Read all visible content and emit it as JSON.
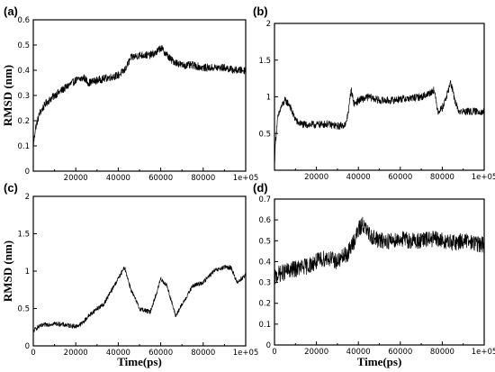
{
  "chart_data": [
    {
      "type": "line",
      "panel_label": "(a)",
      "xlabel": "",
      "ylabel": "RMSD (nm)",
      "xlim": [
        0,
        100000
      ],
      "ylim": [
        0,
        0.6
      ],
      "xticks": [
        20000,
        40000,
        60000,
        80000,
        100000
      ],
      "xtick_labels": [
        "20000",
        "40000",
        "60000",
        "80000",
        "1e+05"
      ],
      "yticks": [
        0,
        0.1,
        0.2,
        0.3,
        0.4,
        0.5,
        0.6
      ],
      "ytick_labels": [
        "0",
        "0.1",
        "0.2",
        "0.3",
        "0.4",
        "0.5",
        "0.6"
      ],
      "noise": 0.015,
      "series": [
        {
          "x": [
            0,
            1000,
            3000,
            6000,
            10000,
            15000,
            20000,
            24000,
            26000,
            30000,
            35000,
            40000,
            43000,
            46000,
            50000,
            55000,
            58000,
            60000,
            62000,
            65000,
            70000,
            75000,
            80000,
            85000,
            90000,
            95000,
            100000
          ],
          "y": [
            0.1,
            0.17,
            0.23,
            0.27,
            0.3,
            0.33,
            0.36,
            0.37,
            0.35,
            0.36,
            0.37,
            0.38,
            0.4,
            0.45,
            0.46,
            0.46,
            0.47,
            0.49,
            0.47,
            0.44,
            0.42,
            0.42,
            0.41,
            0.41,
            0.41,
            0.4,
            0.4
          ]
        }
      ]
    },
    {
      "type": "line",
      "panel_label": "(b)",
      "xlabel": "",
      "ylabel": "",
      "xlim": [
        0,
        100000
      ],
      "ylim": [
        0,
        2
      ],
      "xticks": [
        20000,
        40000,
        60000,
        80000,
        100000
      ],
      "xtick_labels": [
        "20000",
        "40000",
        "60000",
        "80000",
        "1e+05"
      ],
      "yticks": [
        0.5,
        1,
        1.5,
        2
      ],
      "ytick_labels": [
        "0.5",
        "1",
        "1.5",
        "2"
      ],
      "noise": 0.05,
      "series": [
        {
          "x": [
            0,
            500,
            1500,
            3000,
            5000,
            7000,
            9000,
            11000,
            14000,
            20000,
            25000,
            30000,
            34000,
            35500,
            36500,
            38000,
            40000,
            45000,
            50000,
            55000,
            60000,
            65000,
            70000,
            74000,
            76000,
            78000,
            80000,
            82000,
            84000,
            86000,
            88000,
            90000,
            95000,
            100000
          ],
          "y": [
            0.1,
            0.4,
            0.7,
            0.85,
            0.95,
            0.9,
            0.75,
            0.65,
            0.62,
            0.62,
            0.63,
            0.6,
            0.62,
            0.85,
            1.1,
            0.9,
            0.95,
            1.0,
            0.95,
            0.95,
            0.97,
            0.98,
            1.0,
            1.05,
            1.1,
            0.8,
            0.85,
            1.0,
            1.2,
            0.95,
            0.8,
            0.8,
            0.8,
            0.8
          ]
        }
      ]
    },
    {
      "type": "line",
      "panel_label": "(c)",
      "xlabel": "Time(ps)",
      "ylabel": "RMSD (nm)",
      "xlim": [
        0,
        100000
      ],
      "ylim": [
        0,
        2
      ],
      "xticks": [
        0,
        20000,
        40000,
        60000,
        80000,
        100000
      ],
      "xtick_labels": [
        "0",
        "20000",
        "40000",
        "60000",
        "80000",
        "1e+05"
      ],
      "yticks": [
        0,
        0.5,
        1,
        1.5,
        2
      ],
      "ytick_labels": [
        "0",
        "0.5",
        "1",
        "1.5",
        "2"
      ],
      "noise": 0.03,
      "series": [
        {
          "x": [
            0,
            2000,
            5000,
            10000,
            15000,
            20000,
            23000,
            26000,
            30000,
            33000,
            36000,
            40000,
            43000,
            46000,
            50000,
            55000,
            58000,
            60000,
            63000,
            67000,
            70000,
            75000,
            80000,
            85000,
            90000,
            93000,
            96000,
            100000
          ],
          "y": [
            0.2,
            0.25,
            0.28,
            0.3,
            0.28,
            0.26,
            0.3,
            0.4,
            0.5,
            0.55,
            0.7,
            0.9,
            1.05,
            0.75,
            0.5,
            0.45,
            0.7,
            0.9,
            0.8,
            0.4,
            0.55,
            0.8,
            0.85,
            1.0,
            1.05,
            1.05,
            0.85,
            0.95
          ]
        }
      ]
    },
    {
      "type": "line",
      "panel_label": "(d)",
      "xlabel": "Time(ps)",
      "ylabel": "",
      "xlim": [
        0,
        100000
      ],
      "ylim": [
        0,
        0.7
      ],
      "xticks": [
        0,
        20000,
        40000,
        60000,
        80000,
        100000
      ],
      "xtick_labels": [
        "0",
        "20000",
        "40000",
        "60000",
        "80000",
        "1e+05"
      ],
      "yticks": [
        0,
        0.1,
        0.2,
        0.3,
        0.4,
        0.5,
        0.6,
        0.7
      ],
      "ytick_labels": [
        "0",
        "0.1",
        "0.2",
        "0.3",
        "0.4",
        "0.5",
        "0.6",
        "0.7"
      ],
      "noise": 0.04,
      "series": [
        {
          "x": [
            0,
            2000,
            5000,
            8000,
            12000,
            16000,
            20000,
            25000,
            30000,
            35000,
            38000,
            40000,
            42000,
            45000,
            50000,
            55000,
            60000,
            65000,
            70000,
            75000,
            80000,
            85000,
            90000,
            95000,
            100000
          ],
          "y": [
            0.32,
            0.34,
            0.35,
            0.36,
            0.37,
            0.38,
            0.4,
            0.42,
            0.4,
            0.44,
            0.5,
            0.55,
            0.58,
            0.53,
            0.5,
            0.5,
            0.51,
            0.5,
            0.5,
            0.51,
            0.5,
            0.49,
            0.5,
            0.49,
            0.48
          ]
        }
      ]
    }
  ]
}
